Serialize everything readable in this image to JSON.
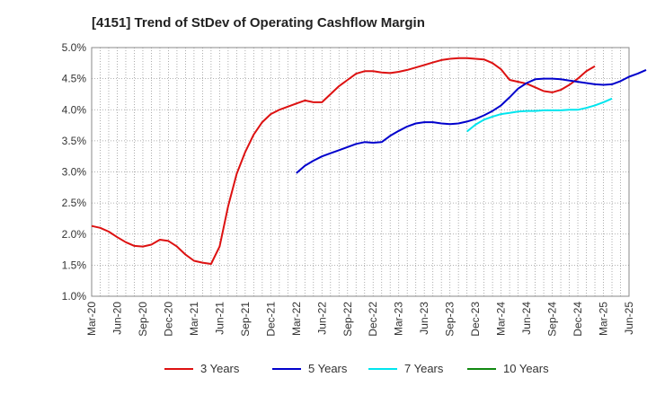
{
  "chart_data": {
    "type": "line",
    "title": "[4151]  Trend of StDev of Operating Cashflow Margin",
    "xlabel": "",
    "ylabel": "",
    "x_ticks": [
      "Mar-20",
      "Jun-20",
      "Sep-20",
      "Dec-20",
      "Mar-21",
      "Jun-21",
      "Sep-21",
      "Dec-21",
      "Mar-22",
      "Jun-22",
      "Sep-22",
      "Dec-22",
      "Mar-23",
      "Jun-23",
      "Sep-23",
      "Dec-23",
      "Mar-24",
      "Jun-24",
      "Sep-24",
      "Dec-24",
      "Mar-25",
      "Jun-25"
    ],
    "y_ticks": [
      "1.0%",
      "1.5%",
      "2.0%",
      "2.5%",
      "3.0%",
      "3.5%",
      "4.0%",
      "4.5%",
      "5.0%"
    ],
    "ylim": [
      1.0,
      5.0
    ],
    "grid": true,
    "legend_position": "bottom",
    "series": [
      {
        "name": "3 Years",
        "color": "#dd1111",
        "points": [
          [
            0,
            2.13
          ],
          [
            1,
            2.1
          ],
          [
            2,
            2.04
          ],
          [
            3,
            1.95
          ],
          [
            4,
            1.87
          ],
          [
            5,
            1.81
          ],
          [
            6,
            1.8
          ],
          [
            7,
            1.83
          ],
          [
            8,
            1.91
          ],
          [
            9,
            1.89
          ],
          [
            10,
            1.8
          ],
          [
            11,
            1.67
          ],
          [
            12,
            1.57
          ],
          [
            13,
            1.54
          ],
          [
            14,
            1.52
          ],
          [
            15,
            1.8
          ],
          [
            16,
            2.45
          ],
          [
            17,
            2.97
          ],
          [
            18,
            3.32
          ],
          [
            19,
            3.6
          ],
          [
            20,
            3.8
          ],
          [
            21,
            3.93
          ],
          [
            22,
            4.0
          ],
          [
            23,
            4.05
          ],
          [
            24,
            4.1
          ],
          [
            25,
            4.15
          ],
          [
            26,
            4.12
          ],
          [
            27,
            4.12
          ],
          [
            28,
            4.25
          ],
          [
            29,
            4.38
          ],
          [
            30,
            4.48
          ],
          [
            31,
            4.58
          ],
          [
            32,
            4.62
          ],
          [
            33,
            4.62
          ],
          [
            34,
            4.6
          ],
          [
            35,
            4.59
          ],
          [
            36,
            4.61
          ],
          [
            37,
            4.64
          ],
          [
            38,
            4.68
          ],
          [
            39,
            4.72
          ],
          [
            40,
            4.76
          ],
          [
            41,
            4.8
          ],
          [
            42,
            4.82
          ],
          [
            43,
            4.83
          ],
          [
            44,
            4.83
          ],
          [
            45,
            4.82
          ],
          [
            46,
            4.81
          ],
          [
            47,
            4.75
          ],
          [
            48,
            4.65
          ],
          [
            49,
            4.48
          ],
          [
            50,
            4.45
          ],
          [
            51,
            4.42
          ],
          [
            52,
            4.36
          ],
          [
            53,
            4.3
          ],
          [
            54,
            4.28
          ],
          [
            55,
            4.32
          ],
          [
            56,
            4.4
          ],
          [
            57,
            4.5
          ],
          [
            58,
            4.62
          ],
          [
            59,
            4.7
          ]
        ]
      },
      {
        "name": "5 Years",
        "color": "#0000cc",
        "points": [
          [
            24,
            2.98
          ],
          [
            25,
            3.1
          ],
          [
            26,
            3.18
          ],
          [
            27,
            3.25
          ],
          [
            28,
            3.3
          ],
          [
            29,
            3.35
          ],
          [
            30,
            3.4
          ],
          [
            31,
            3.45
          ],
          [
            32,
            3.48
          ],
          [
            33,
            3.47
          ],
          [
            34,
            3.48
          ],
          [
            35,
            3.58
          ],
          [
            36,
            3.66
          ],
          [
            37,
            3.73
          ],
          [
            38,
            3.78
          ],
          [
            39,
            3.8
          ],
          [
            40,
            3.8
          ],
          [
            41,
            3.78
          ],
          [
            42,
            3.77
          ],
          [
            43,
            3.78
          ],
          [
            44,
            3.81
          ],
          [
            45,
            3.85
          ],
          [
            46,
            3.91
          ],
          [
            47,
            3.98
          ],
          [
            48,
            4.07
          ],
          [
            49,
            4.2
          ],
          [
            50,
            4.34
          ],
          [
            51,
            4.43
          ],
          [
            52,
            4.49
          ],
          [
            53,
            4.5
          ],
          [
            54,
            4.5
          ],
          [
            55,
            4.49
          ],
          [
            56,
            4.47
          ],
          [
            57,
            4.45
          ],
          [
            58,
            4.43
          ],
          [
            59,
            4.41
          ],
          [
            60,
            4.4
          ],
          [
            61,
            4.41
          ],
          [
            62,
            4.46
          ],
          [
            63,
            4.53
          ],
          [
            64,
            4.58
          ],
          [
            65,
            4.64
          ]
        ]
      },
      {
        "name": "7 Years",
        "color": "#00e5ee",
        "points": [
          [
            44,
            3.65
          ],
          [
            45,
            3.76
          ],
          [
            46,
            3.84
          ],
          [
            47,
            3.89
          ],
          [
            48,
            3.93
          ],
          [
            49,
            3.95
          ],
          [
            50,
            3.97
          ],
          [
            51,
            3.98
          ],
          [
            52,
            3.98
          ],
          [
            53,
            3.99
          ],
          [
            54,
            3.99
          ],
          [
            55,
            3.99
          ],
          [
            56,
            4.0
          ],
          [
            57,
            4.0
          ],
          [
            58,
            4.03
          ],
          [
            59,
            4.07
          ],
          [
            60,
            4.12
          ],
          [
            61,
            4.18
          ]
        ]
      },
      {
        "name": "10 Years",
        "color": "#118811",
        "points": []
      }
    ]
  }
}
